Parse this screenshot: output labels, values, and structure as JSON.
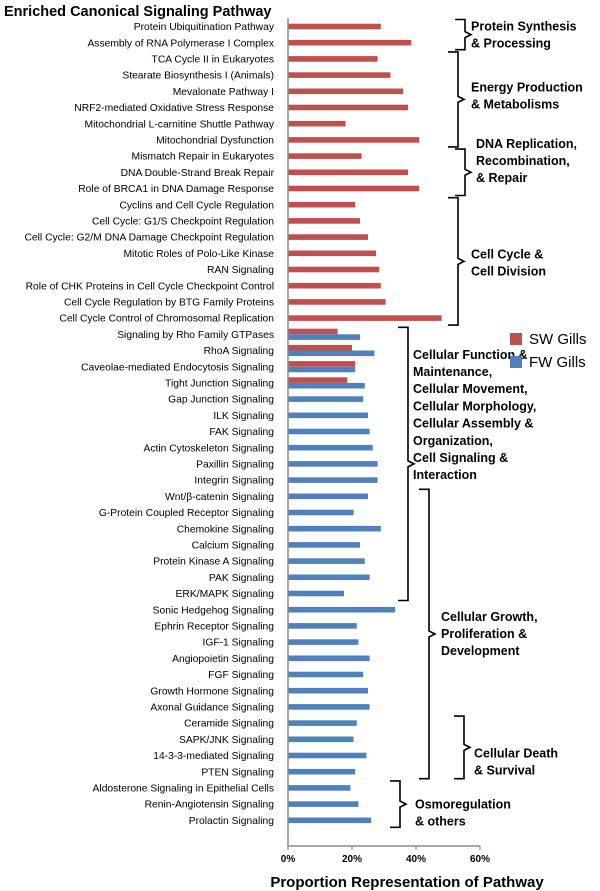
{
  "chart_data": {
    "type": "bar",
    "orientation": "horizontal",
    "title": "Enriched Canonical Signaling Pathway",
    "xlabel": "Proportion Representation of Pathway",
    "ylabel": "",
    "xlim": [
      0,
      60
    ],
    "xticks": [
      "0%",
      "20%",
      "40%",
      "60%"
    ],
    "grid": false,
    "legend_position": "right",
    "categories": [
      "Protein Ubiquitination Pathway",
      "Assembly of RNA Polymerase I Complex",
      "TCA Cycle II in Eukaryotes",
      "Stearate Biosynthesis I (Animals)",
      "Mevalonate Pathway I",
      "NRF2-mediated Oxidative Stress Response",
      "Mitochondrial L-carnitine Shuttle Pathway",
      "Mitochondrial Dysfunction",
      "Mismatch Repair in Eukaryotes",
      "DNA Double-Strand Break Repair",
      "Role of BRCA1 in DNA Damage Response",
      "Cyclins and Cell Cycle Regulation",
      "Cell Cycle: G1/S Checkpoint Regulation",
      "Cell Cycle: G2/M DNA Damage Checkpoint Regulation",
      "Mitotic Roles of Polo-Like Kinase",
      "RAN Signaling",
      "Role of CHK Proteins in Cell Cycle Checkpoint Control",
      "Cell Cycle Regulation by BTG Family Proteins",
      "Cell Cycle Control of Chromosomal Replication",
      "Signaling by Rho Family GTPases",
      "RhoA Signaling",
      "Caveolae-mediated Endocytosis Signaling",
      "Tight Junction Signaling",
      "Gap Junction Signaling",
      "ILK Signaling",
      "FAK Signaling",
      "Actin Cytoskeleton Signaling",
      "Paxillin Signaling",
      "Integrin Signaling",
      "Wnt/β-catenin Signaling",
      "G-Protein Coupled Receptor Signaling",
      "Chemokine Signaling",
      "Calcium Signaling",
      "Protein Kinase A Signaling",
      "PAK Signaling",
      "ERK/MAPK Signaling",
      "Sonic Hedgehog Signaling",
      "Ephrin Receptor Signaling",
      "IGF-1 Signaling",
      "Angiopoietin Signaling",
      "FGF Signaling",
      "Growth Hormone Signaling",
      "Axonal Guidance Signaling",
      "Ceramide Signaling",
      "SAPK/JNK Signaling",
      "14-3-3-mediated Signaling",
      "PTEN Signaling",
      "Aldosterone Signaling in Epithelial Cells",
      "Renin-Angiotensin Signaling",
      "Prolactin Signaling"
    ],
    "series": [
      {
        "name": "SW Gills",
        "color": "#c0504d",
        "values": [
          29,
          38.5,
          28,
          32,
          36,
          37.5,
          18,
          41,
          23,
          37.5,
          41,
          21,
          22.5,
          25,
          27.5,
          28.5,
          29,
          30.5,
          48,
          15.5,
          20,
          21,
          18.5,
          null,
          null,
          null,
          null,
          null,
          null,
          null,
          null,
          null,
          null,
          null,
          null,
          null,
          null,
          null,
          null,
          null,
          null,
          null,
          null,
          null,
          null,
          null,
          null,
          null,
          null,
          null
        ]
      },
      {
        "name": "FW Gills",
        "color": "#4f81bd",
        "values": [
          null,
          null,
          null,
          null,
          null,
          null,
          null,
          null,
          null,
          null,
          null,
          null,
          null,
          null,
          null,
          null,
          null,
          null,
          null,
          22.5,
          27,
          21,
          24,
          23.5,
          25,
          25.5,
          26.5,
          28,
          28,
          25,
          20.5,
          29,
          22.5,
          24,
          25.5,
          17.5,
          33.5,
          21.5,
          22,
          25.5,
          23.5,
          25,
          25.5,
          21.5,
          20.5,
          24.5,
          21,
          19.5,
          22,
          26
        ]
      }
    ],
    "groups": [
      {
        "lines": [
          "Protein Synthesis",
          "& Processing"
        ],
        "from": 0,
        "to": 1
      },
      {
        "lines": [
          "Energy Production",
          "& Metabolisms"
        ],
        "from": 2,
        "to": 7
      },
      {
        "lines": [
          "DNA Replication,",
          "Recombination,",
          "& Repair"
        ],
        "from": 8,
        "to": 10
      },
      {
        "lines": [
          "Cell Cycle &",
          "Cell Division"
        ],
        "from": 11,
        "to": 18
      },
      {
        "lines": [
          "Cellular Function &",
          "Maintenance,",
          "Cellular Movement,",
          "Cellular Morphology,",
          "Cellular Assembly &",
          "Organization,",
          "Cell Signaling &",
          "Interaction"
        ],
        "from": 19,
        "to": 35
      },
      {
        "lines": [
          "Cellular Growth,",
          "Proliferation  &",
          "Development"
        ],
        "from": 29,
        "to": 46
      },
      {
        "lines": [
          "Cellular Death",
          "& Survival"
        ],
        "from": 43,
        "to": 46
      },
      {
        "lines": [
          "Osmoregulation",
          "& others"
        ],
        "from": 47,
        "to": 49
      }
    ]
  }
}
